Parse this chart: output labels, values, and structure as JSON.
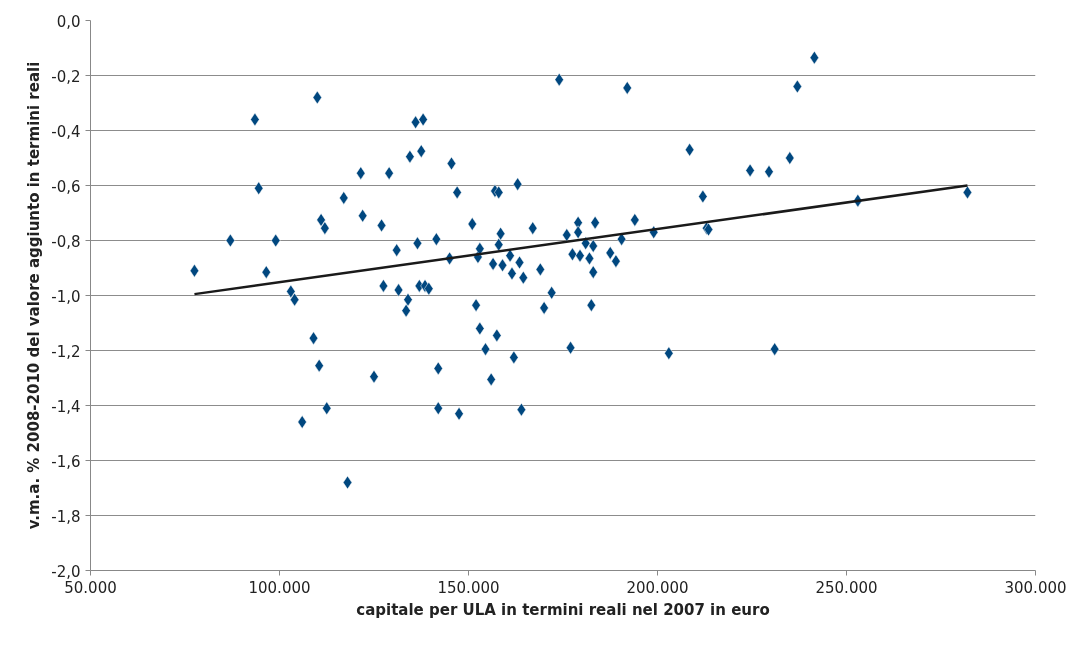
{
  "chart_data": {
    "type": "scatter",
    "xlabel": "capitale per ULA in termini reali nel 2007 in euro",
    "ylabel": "v.m.a. % 2008-2010 del valore aggiunto in termini reali",
    "xlim": [
      50000,
      300000
    ],
    "ylim": [
      -2.0,
      0.0
    ],
    "xticks": [
      {
        "value": 50000,
        "label": "50.000"
      },
      {
        "value": 100000,
        "label": "100.000"
      },
      {
        "value": 150000,
        "label": "150.000"
      },
      {
        "value": 200000,
        "label": "200.000"
      },
      {
        "value": 250000,
        "label": "250.000"
      },
      {
        "value": 300000,
        "label": "300.000"
      }
    ],
    "yticks": [
      {
        "value": 0.0,
        "label": "0,0"
      },
      {
        "value": -0.2,
        "label": "-0,2"
      },
      {
        "value": -0.4,
        "label": "-0,4"
      },
      {
        "value": -0.6,
        "label": "-0,6"
      },
      {
        "value": -0.8,
        "label": "-0,8"
      },
      {
        "value": -1.0,
        "label": "-1,0"
      },
      {
        "value": -1.2,
        "label": "-1,2"
      },
      {
        "value": -1.4,
        "label": "-1,4"
      },
      {
        "value": -1.6,
        "label": "-1,6"
      },
      {
        "value": -1.8,
        "label": "-1,8"
      },
      {
        "value": -2.0,
        "label": "-2,0"
      }
    ],
    "grid": "y",
    "series": [
      {
        "color": "#00477f",
        "marker": "diamond",
        "x": [
          77500,
          87000,
          93500,
          94500,
          96500,
          99000,
          103000,
          104000,
          106000,
          109000,
          110000,
          110500,
          111000,
          112000,
          112500,
          117000,
          118000,
          121500,
          122000,
          125000,
          127000,
          127500,
          129000,
          131000,
          131500,
          133500,
          134000,
          134500,
          136000,
          136500,
          137000,
          137500,
          138000,
          138500,
          139500,
          141500,
          142000,
          142000,
          145000,
          145500,
          147000,
          147500,
          151000,
          152000,
          152500,
          153000,
          153000,
          154500,
          156000,
          156500,
          157000,
          157500,
          158000,
          158000,
          158500,
          159000,
          161000,
          161500,
          162000,
          163000,
          163500,
          164000,
          164500,
          167000,
          169000,
          170000,
          172000,
          174000,
          176000,
          177000,
          177500,
          179000,
          179000,
          179500,
          181000,
          182000,
          182500,
          183000,
          183000,
          183500,
          187500,
          189000,
          190500,
          192000,
          194000,
          199000,
          203000,
          208500,
          212000,
          213000,
          213500,
          224500,
          229500,
          231000,
          235000,
          237000,
          241500,
          253000,
          282000
        ],
        "values": [
          -0.91,
          -0.8,
          -0.36,
          -0.61,
          -0.915,
          -0.8,
          -0.985,
          -1.015,
          -1.46,
          -1.155,
          -0.28,
          -1.255,
          -0.725,
          -0.755,
          -1.41,
          -0.645,
          -1.68,
          -0.555,
          -0.71,
          -1.295,
          -0.745,
          -0.965,
          -0.555,
          -0.835,
          -0.98,
          -1.055,
          -1.015,
          -0.495,
          -0.37,
          -0.81,
          -0.965,
          -0.475,
          -0.36,
          -0.965,
          -0.975,
          -0.795,
          -1.265,
          -1.41,
          -0.865,
          -0.52,
          -0.625,
          -1.43,
          -0.74,
          -1.035,
          -0.86,
          -1.12,
          -0.83,
          -1.195,
          -1.305,
          -0.885,
          -0.62,
          -1.145,
          -0.815,
          -0.625,
          -0.775,
          -0.89,
          -0.855,
          -0.92,
          -1.225,
          -0.595,
          -0.88,
          -1.415,
          -0.935,
          -0.755,
          -0.905,
          -1.045,
          -0.99,
          -0.215,
          -0.78,
          -1.19,
          -0.85,
          -0.735,
          -0.77,
          -0.855,
          -0.81,
          -0.865,
          -1.035,
          -0.915,
          -0.82,
          -0.735,
          -0.845,
          -0.875,
          -0.795,
          -0.245,
          -0.725,
          -0.77,
          -1.21,
          -0.47,
          -0.64,
          -0.755,
          -0.76,
          -0.545,
          -0.55,
          -1.195,
          -0.5,
          -0.24,
          -0.135,
          -0.655,
          -0.625
        ]
      },
      {
        "type": "line",
        "color": "#1a1a1a",
        "marker": "none",
        "x": [
          77500,
          282000
        ],
        "values": [
          -0.995,
          -0.6
        ]
      }
    ]
  }
}
